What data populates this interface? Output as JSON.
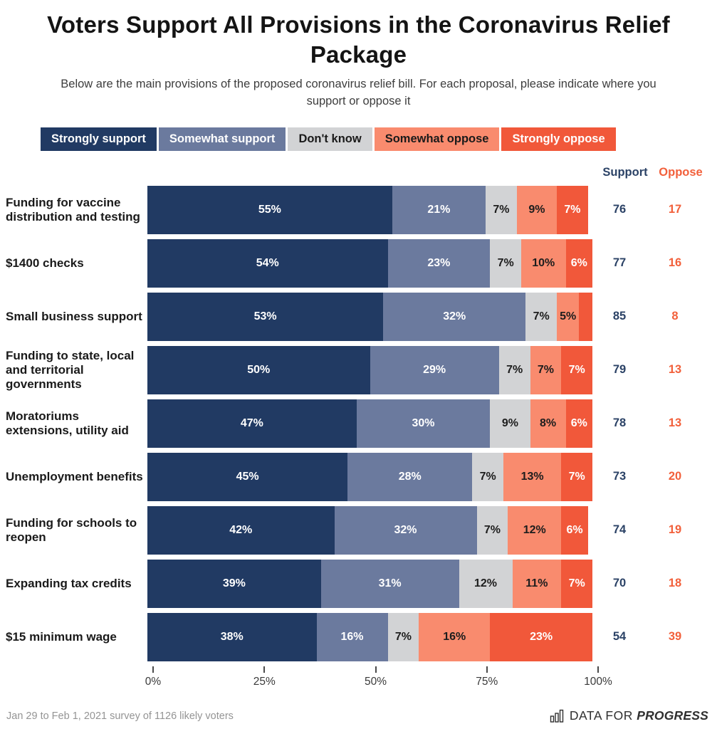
{
  "header": {
    "title": "Voters Support All Provisions in the Coronavirus Relief Package",
    "subtitle": "Below are the main provisions of the proposed coronavirus relief bill. For each proposal, please indicate where you support or oppose it"
  },
  "legend": {
    "items": [
      {
        "label": "Strongly support",
        "color": "#213a63",
        "text_color": "#ffffff"
      },
      {
        "label": "Somewhat support",
        "color": "#6b7a9e",
        "text_color": "#ffffff"
      },
      {
        "label": "Don't know",
        "color": "#d2d3d5",
        "text_color": "#1a1a1a"
      },
      {
        "label": "Somewhat oppose",
        "color": "#f98b6e",
        "text_color": "#1a1a1a"
      },
      {
        "label": "Strongly oppose",
        "color": "#f1583a",
        "text_color": "#ffffff"
      }
    ]
  },
  "columns": {
    "support": "Support",
    "oppose": "Oppose"
  },
  "colors": {
    "strongly_support": "#213a63",
    "somewhat_support": "#6b7a9e",
    "dont_know": "#d2d3d5",
    "somewhat_oppose": "#f98b6e",
    "strongly_oppose": "#f1583a",
    "support_header": "#2b4266",
    "oppose_header": "#f2603b"
  },
  "chart_data": {
    "type": "bar",
    "stacked": true,
    "orientation": "horizontal",
    "title": "Voters Support All Provisions in the Coronavirus Relief Package",
    "xlabel": "",
    "ylabel": "",
    "xlim": [
      0,
      100
    ],
    "x_ticks": [
      "0%",
      "25%",
      "50%",
      "75%",
      "100%"
    ],
    "legend_position": "top",
    "grid": false,
    "series_names": [
      "Strongly support",
      "Somewhat support",
      "Don't know",
      "Somewhat oppose",
      "Strongly oppose"
    ],
    "series_colors": [
      "#213a63",
      "#6b7a9e",
      "#d2d3d5",
      "#f98b6e",
      "#f1583a"
    ],
    "series_label_colors": [
      "#ffffff",
      "#ffffff",
      "#1d1d1d",
      "#1d1d1d",
      "#ffffff"
    ],
    "categories": [
      "Funding for vaccine distribution and testing",
      "$1400 checks",
      "Small business support",
      "Funding to state, local and territorial governments",
      "Moratoriums extensions, utility aid",
      "Unemployment benefits",
      "Funding for schools to reopen",
      "Expanding tax credits",
      "$15 minimum wage"
    ],
    "rows": [
      {
        "label": "Funding for vaccine distribution and testing",
        "values": [
          55,
          21,
          7,
          9,
          7
        ],
        "value_labels": [
          "55%",
          "21%",
          "7%",
          "9%",
          "7%"
        ],
        "support": 76,
        "oppose": 17
      },
      {
        "label": "$1400 checks",
        "values": [
          54,
          23,
          7,
          10,
          6
        ],
        "value_labels": [
          "54%",
          "23%",
          "7%",
          "10%",
          "6%"
        ],
        "support": 77,
        "oppose": 16
      },
      {
        "label": "Small business support",
        "values": [
          53,
          32,
          7,
          5,
          3
        ],
        "value_labels": [
          "53%",
          "32%",
          "7%",
          "5%",
          ""
        ],
        "support": 85,
        "oppose": 8
      },
      {
        "label": "Funding to state, local and territorial governments",
        "values": [
          50,
          29,
          7,
          7,
          7
        ],
        "value_labels": [
          "50%",
          "29%",
          "7%",
          "7%",
          "7%"
        ],
        "support": 79,
        "oppose": 13
      },
      {
        "label": "Moratoriums extensions, utility aid",
        "values": [
          47,
          30,
          9,
          8,
          6
        ],
        "value_labels": [
          "47%",
          "30%",
          "9%",
          "8%",
          "6%"
        ],
        "support": 78,
        "oppose": 13
      },
      {
        "label": "Unemployment benefits",
        "values": [
          45,
          28,
          7,
          13,
          7
        ],
        "value_labels": [
          "45%",
          "28%",
          "7%",
          "13%",
          "7%"
        ],
        "support": 73,
        "oppose": 20
      },
      {
        "label": "Funding for schools to reopen",
        "values": [
          42,
          32,
          7,
          12,
          6
        ],
        "value_labels": [
          "42%",
          "32%",
          "7%",
          "12%",
          "6%"
        ],
        "support": 74,
        "oppose": 19
      },
      {
        "label": "Expanding tax credits",
        "values": [
          39,
          31,
          12,
          11,
          7
        ],
        "value_labels": [
          "39%",
          "31%",
          "12%",
          "11%",
          "7%"
        ],
        "support": 70,
        "oppose": 18
      },
      {
        "label": "$15 minimum wage",
        "values": [
          38,
          16,
          7,
          16,
          23
        ],
        "value_labels": [
          "38%",
          "16%",
          "7%",
          "16%",
          "23%"
        ],
        "support": 54,
        "oppose": 39
      }
    ]
  },
  "footer": {
    "note": "Jan 29 to Feb 1, 2021 survey of 1126 likely voters",
    "brand_prefix": "DATA FOR ",
    "brand_name": "PROGRESS"
  }
}
